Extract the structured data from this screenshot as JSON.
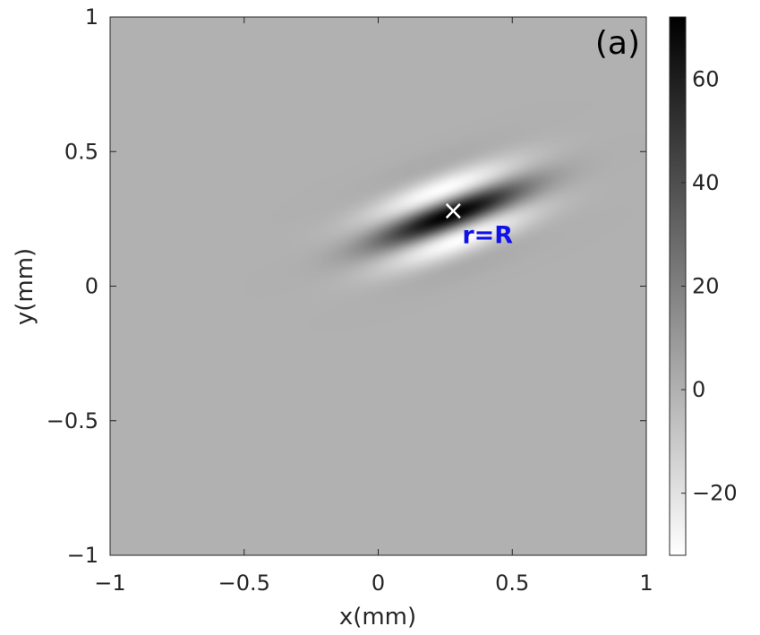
{
  "chart_data": {
    "type": "heatmap",
    "panel_label": "(a)",
    "xlabel": "x(mm)",
    "ylabel": "y(mm)",
    "xlim": [
      -1,
      1
    ],
    "ylim": [
      -1,
      1
    ],
    "x_ticks": [
      -1,
      -0.5,
      0,
      0.5,
      1
    ],
    "y_ticks": [
      -1,
      -0.5,
      0,
      0.5,
      1
    ],
    "x_tick_labels": [
      "−1",
      "−0.5",
      "0",
      "0.5",
      "1"
    ],
    "y_tick_labels": [
      "−1",
      "−0.5",
      "0",
      "0.5",
      "1"
    ],
    "colormap": "gray-reversed",
    "color_min": -32,
    "color_max": 72,
    "colorbar_ticks": [
      -20,
      0,
      20,
      40,
      60
    ],
    "colorbar_tick_labels": [
      "−20",
      "0",
      "20",
      "40",
      "60"
    ],
    "background_value": 0,
    "pattern": {
      "center": [
        0.27,
        0.265
      ],
      "orientation_deg": 20,
      "peak": 72,
      "trough": -32
    },
    "marker": {
      "x": 0.28,
      "y": 0.28,
      "symbol": "×",
      "label": "r=R"
    },
    "grid": false
  }
}
